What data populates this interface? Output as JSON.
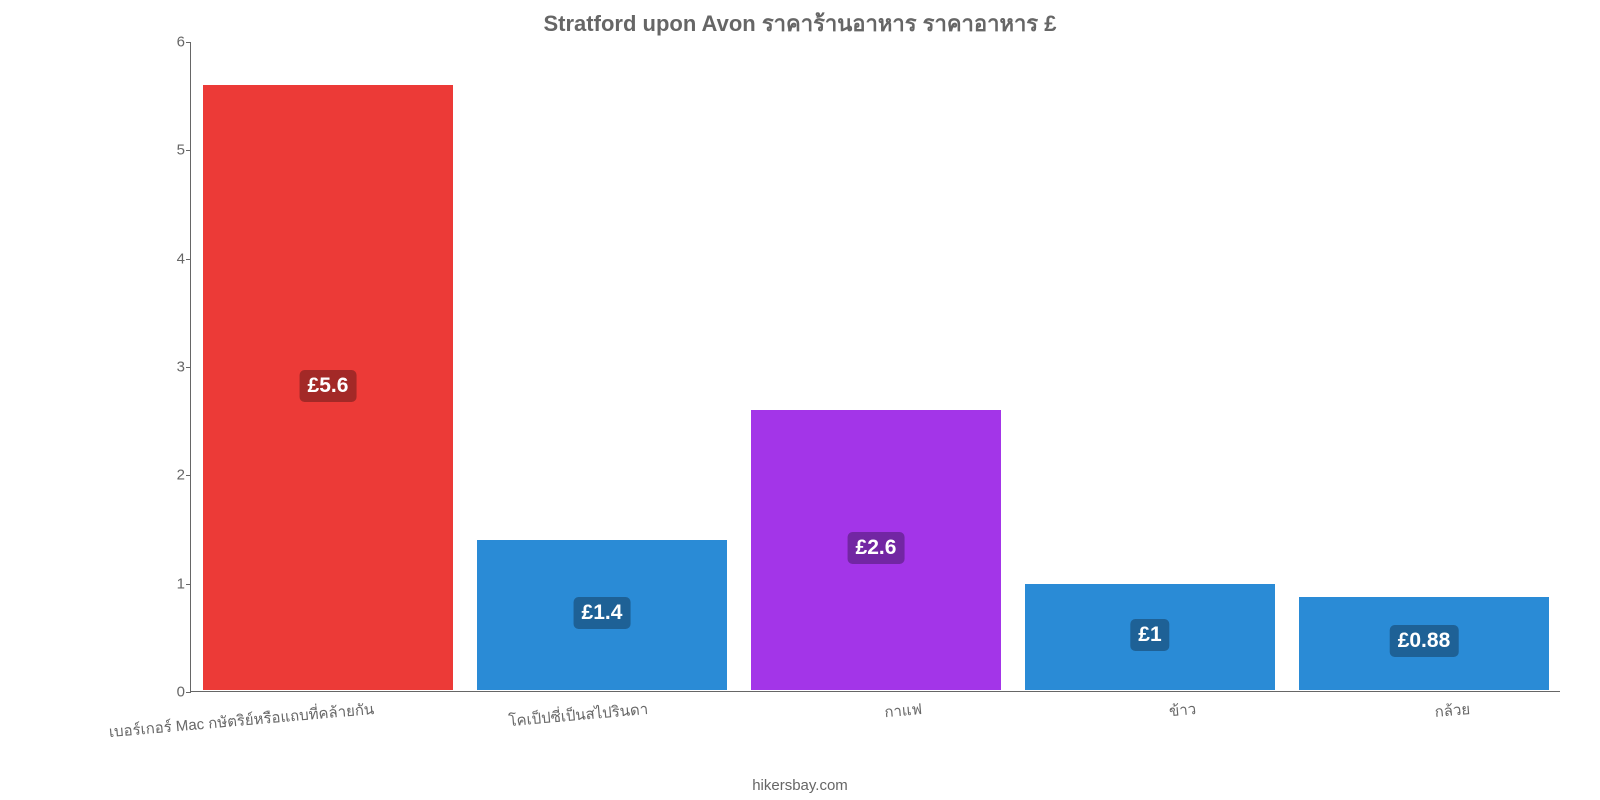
{
  "chart": {
    "type": "bar",
    "title": "Stratford upon Avon ราคาร้านอาหาร ราคาอาหาร £",
    "title_color": "#666666",
    "title_fontsize": 22,
    "background_color": "#ffffff",
    "axis_color": "#666666",
    "ylim": [
      0,
      6
    ],
    "yticks": [
      0,
      1,
      2,
      3,
      4,
      5,
      6
    ],
    "ytick_fontsize": 15,
    "bar_width_ratio": 0.92,
    "xlabel_fontsize": 15,
    "xlabel_rotation_deg": -5,
    "value_label_fontsize": 21,
    "categories": [
      "เบอร์เกอร์ Mac กษัตริย์หรือแถบที่คล้ายกัน",
      "โคเป็ปซี่เป็นสไปรินดา",
      "กาแฟ",
      "ข้าว",
      "กล้วย"
    ],
    "values": [
      5.6,
      1.4,
      2.6,
      1.0,
      0.88
    ],
    "value_labels": [
      "£5.6",
      "£1.4",
      "£2.6",
      "£1",
      "£0.88"
    ],
    "bar_colors": [
      "#ec3a37",
      "#2a8bd6",
      "#a335e8",
      "#2a8bd6",
      "#2a8bd6"
    ],
    "label_bg_colors": [
      "#a32927",
      "#1e6196",
      "#7226a3",
      "#1e6196",
      "#1e6196"
    ],
    "credit": "hikersbay.com",
    "credit_fontsize": 15
  }
}
